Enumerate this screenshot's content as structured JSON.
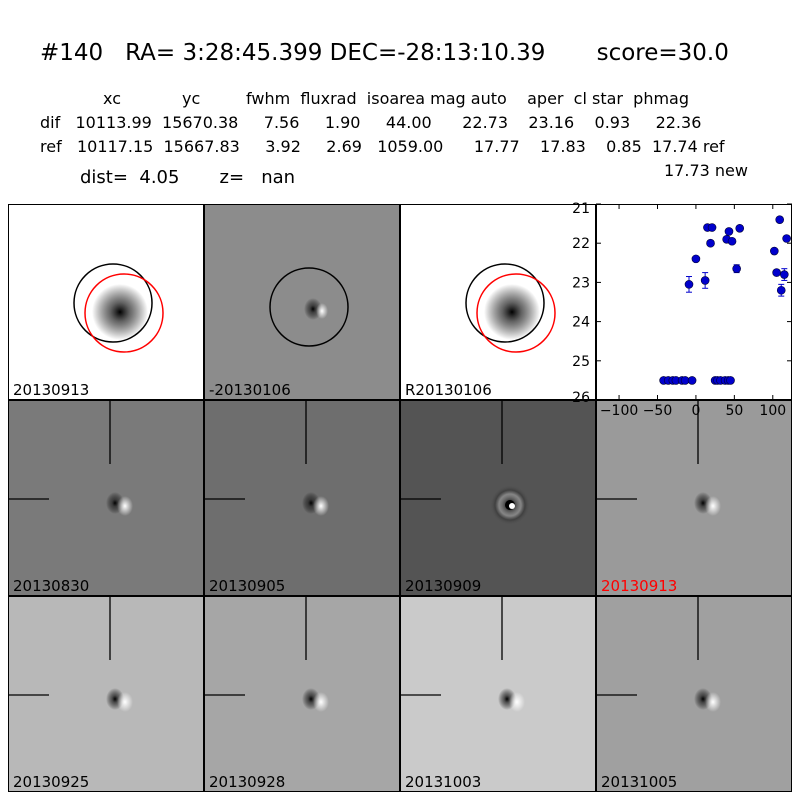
{
  "header": {
    "title": "#140   RA= 3:28:45.399 DEC=-28:13:10.39       score=30.0",
    "columns_line": "xc            yc         fwhm  fluxrad  isoarea mag auto    aper  cl star  phmag",
    "dif_line": "dif   10113.99  15670.38     7.56     1.90     44.00      22.73    23.16    0.93     22.36",
    "ref_line": "ref   10117.15  15667.83     3.92     2.69   1059.00      17.77    17.83    0.85  17.74 ref",
    "new_line": "17.73 new",
    "dist_line": "dist=  4.05       z=   nan"
  },
  "panels": [
    {
      "label": "20130913",
      "bg": "#ffffff",
      "kind": "ref",
      "label_color": "#000000"
    },
    {
      "label": "-20130106",
      "bg": "#8c8c8c",
      "kind": "diff-circle",
      "label_color": "#000000"
    },
    {
      "label": "R20130106",
      "bg": "#ffffff",
      "kind": "ref",
      "label_color": "#000000"
    },
    {
      "label": "20130830",
      "bg": "#7a7a7a",
      "kind": "diff",
      "label_color": "#000000"
    },
    {
      "label": "20130905",
      "bg": "#6e6e6e",
      "kind": "diff",
      "label_color": "#000000"
    },
    {
      "label": "20130909",
      "bg": "#545454",
      "kind": "ring",
      "label_color": "#000000"
    },
    {
      "label": "20130913",
      "bg": "#9a9a9a",
      "kind": "diff",
      "label_color": "#ff0000"
    },
    {
      "label": "20130925",
      "bg": "#b8b8b8",
      "kind": "diff",
      "label_color": "#000000"
    },
    {
      "label": "20130928",
      "bg": "#a6a6a6",
      "kind": "diff",
      "label_color": "#000000"
    },
    {
      "label": "20131003",
      "bg": "#cacaca",
      "kind": "diff",
      "label_color": "#000000"
    },
    {
      "label": "20131005",
      "bg": "#a0a0a0",
      "kind": "diff",
      "label_color": "#000000"
    }
  ],
  "chart_data": {
    "type": "scatter",
    "title": "",
    "xlabel": "",
    "ylabel": "",
    "xlim": [
      -130,
      125
    ],
    "ylim": [
      26,
      21
    ],
    "y_inverted": true,
    "x_ticks": [
      -100,
      -50,
      0,
      50,
      100
    ],
    "y_ticks": [
      21,
      22,
      23,
      24,
      25,
      26
    ],
    "marker_color": "#0000cc",
    "series": [
      {
        "points": [
          {
            "x": -42,
            "y": 25.5
          },
          {
            "x": -36,
            "y": 25.5
          },
          {
            "x": -30,
            "y": 25.5
          },
          {
            "x": -26,
            "y": 25.5
          },
          {
            "x": -18,
            "y": 25.5
          },
          {
            "x": -14,
            "y": 25.5
          },
          {
            "x": -5,
            "y": 25.5
          },
          {
            "x": -9,
            "y": 23.05,
            "err": 0.2
          },
          {
            "x": 0,
            "y": 22.4
          },
          {
            "x": 12,
            "y": 22.95,
            "err": 0.2
          },
          {
            "x": 15,
            "y": 21.6
          },
          {
            "x": 19,
            "y": 22.0
          },
          {
            "x": 21,
            "y": 21.6
          },
          {
            "x": 25,
            "y": 25.5
          },
          {
            "x": 28,
            "y": 25.5
          },
          {
            "x": 32,
            "y": 25.5
          },
          {
            "x": 38,
            "y": 25.5
          },
          {
            "x": 42,
            "y": 25.5
          },
          {
            "x": 45,
            "y": 25.5
          },
          {
            "x": 40,
            "y": 21.9
          },
          {
            "x": 43,
            "y": 21.7
          },
          {
            "x": 47,
            "y": 21.95
          },
          {
            "x": 53,
            "y": 22.65,
            "err": 0.1
          },
          {
            "x": 57,
            "y": 21.62
          },
          {
            "x": 102,
            "y": 22.2
          },
          {
            "x": 105,
            "y": 22.75
          },
          {
            "x": 109,
            "y": 21.4
          },
          {
            "x": 111,
            "y": 23.2,
            "err": 0.15
          },
          {
            "x": 115,
            "y": 22.8,
            "err": 0.15
          },
          {
            "x": 118,
            "y": 21.88
          }
        ]
      }
    ]
  }
}
